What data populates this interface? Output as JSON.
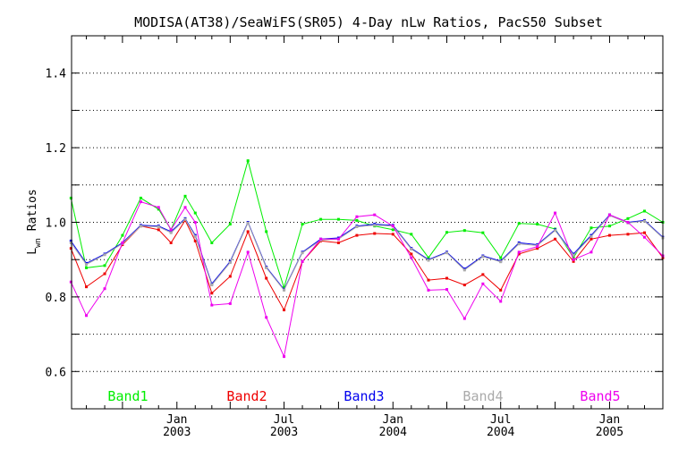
{
  "chart_data": {
    "type": "line",
    "title": "MODISA(AT38)/SeaWiFS(SR05) 4-Day nLw Ratios, PacS50 Subset",
    "ylabel": "Lwn Ratios",
    "ylabel_main": "L",
    "ylabel_sub": "wn",
    "ylabel_rest": " Ratios",
    "ylim": [
      0.5,
      1.5
    ],
    "xlim": [
      "2002-07-07",
      "2005-04-01"
    ],
    "grid": "horizontal dotted",
    "y_ticks": [
      "0.6",
      "0.8",
      "1.0",
      "1.2",
      "1.4"
    ],
    "x_ticks": [
      {
        "date": "2003-01-01",
        "month": "Jan",
        "year": "2003"
      },
      {
        "date": "2003-07-01",
        "month": "Jul",
        "year": "2003"
      },
      {
        "date": "2004-01-01",
        "month": "Jan",
        "year": "2004"
      },
      {
        "date": "2004-07-01",
        "month": "Jul",
        "year": "2004"
      },
      {
        "date": "2005-01-01",
        "month": "Jan",
        "year": "2005"
      }
    ],
    "x": [
      "2002-07-06",
      "2002-08-01",
      "2002-09-01",
      "2002-10-01",
      "2002-11-01",
      "2002-12-01",
      "2002-12-22",
      "2003-01-15",
      "2003-02-01",
      "2003-03-01",
      "2003-04-01",
      "2003-05-01",
      "2003-06-01",
      "2003-07-01",
      "2003-08-01",
      "2003-09-01",
      "2003-10-01",
      "2003-11-01",
      "2003-12-01",
      "2004-01-01",
      "2004-02-01",
      "2004-03-01",
      "2004-04-01",
      "2004-05-01",
      "2004-06-01",
      "2004-07-01",
      "2004-08-01",
      "2004-09-01",
      "2004-10-01",
      "2004-11-01",
      "2004-12-01",
      "2005-01-01",
      "2005-02-01",
      "2005-03-01",
      "2005-04-01"
    ],
    "series": [
      {
        "name": "Band1",
        "color": "#00ee00",
        "values": [
          1.065,
          0.878,
          0.884,
          0.965,
          1.065,
          1.035,
          0.98,
          1.07,
          1.025,
          0.945,
          0.995,
          1.165,
          0.975,
          0.825,
          0.995,
          1.008,
          1.008,
          1.005,
          0.99,
          0.98,
          0.968,
          0.905,
          0.973,
          0.978,
          0.972,
          0.905,
          0.997,
          0.995,
          0.982,
          0.905,
          0.985,
          0.99,
          1.01,
          1.03,
          1.0
        ]
      },
      {
        "name": "Band2",
        "color": "#ee0000",
        "values": [
          0.93,
          0.827,
          0.862,
          0.94,
          0.99,
          0.98,
          0.945,
          1.005,
          0.95,
          0.81,
          0.855,
          0.975,
          0.85,
          0.765,
          0.895,
          0.95,
          0.945,
          0.965,
          0.97,
          0.968,
          0.915,
          0.845,
          0.85,
          0.832,
          0.86,
          0.818,
          0.915,
          0.93,
          0.955,
          0.895,
          0.955,
          0.965,
          0.968,
          0.972,
          0.905
        ]
      },
      {
        "name": "Band3",
        "color": "#0000ee",
        "values": [
          0.95,
          0.89,
          0.915,
          0.945,
          0.992,
          0.99,
          0.975,
          1.01,
          0.965,
          0.835,
          0.895,
          1.0,
          0.88,
          0.82,
          0.92,
          0.955,
          0.958,
          0.99,
          0.995,
          0.992,
          0.93,
          0.9,
          0.92,
          0.875,
          0.91,
          0.896,
          0.945,
          0.94,
          0.98,
          0.915,
          0.965,
          1.02,
          1.0,
          1.005,
          0.96
        ]
      },
      {
        "name": "Band4",
        "color": "#aaaaaa",
        "values": [
          0.945,
          0.887,
          0.913,
          0.943,
          0.99,
          0.988,
          0.972,
          1.008,
          0.962,
          0.832,
          0.892,
          0.998,
          0.878,
          0.818,
          0.918,
          0.952,
          0.955,
          0.988,
          0.992,
          0.99,
          0.928,
          0.898,
          0.918,
          0.872,
          0.908,
          0.894,
          0.942,
          0.938,
          0.978,
          0.912,
          0.962,
          1.018,
          0.998,
          1.003,
          0.958
        ]
      },
      {
        "name": "Band5",
        "color": "#ee00ee",
        "values": [
          0.84,
          0.75,
          0.822,
          0.945,
          1.055,
          1.04,
          0.98,
          1.04,
          1.0,
          0.778,
          0.782,
          0.92,
          0.745,
          0.64,
          0.895,
          0.955,
          0.955,
          1.015,
          1.02,
          0.99,
          0.905,
          0.818,
          0.82,
          0.742,
          0.835,
          0.788,
          0.92,
          0.935,
          1.025,
          0.9,
          0.92,
          1.02,
          1.0,
          0.96,
          0.91
        ]
      }
    ]
  }
}
